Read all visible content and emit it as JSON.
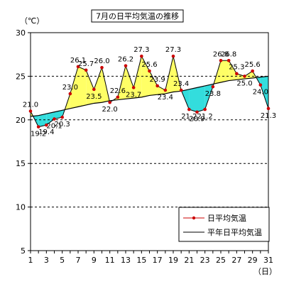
{
  "chart_data": {
    "type": "line",
    "title": "7月の日平均気温の推移",
    "y_unit": "（℃）",
    "x_unit": "（日）",
    "ylim": [
      5,
      30
    ],
    "yticks": [
      5,
      10,
      15,
      20,
      25,
      30
    ],
    "xticks": [
      1,
      3,
      5,
      7,
      9,
      11,
      13,
      15,
      17,
      19,
      21,
      23,
      25,
      27,
      29,
      31
    ],
    "dashed_gridlines_at": [
      10,
      15,
      20,
      25
    ],
    "legend_position": "bottom-right",
    "x": [
      1,
      2,
      3,
      4,
      5,
      6,
      7,
      8,
      9,
      10,
      11,
      12,
      13,
      14,
      15,
      16,
      17,
      18,
      19,
      20,
      21,
      22,
      23,
      24,
      25,
      26,
      27,
      28,
      29,
      30,
      31
    ],
    "series": [
      {
        "name": "日平均気温",
        "values": [
          21.0,
          19.2,
          19.4,
          20.1,
          20.3,
          23.0,
          26.1,
          25.7,
          23.5,
          26.0,
          22.0,
          22.6,
          26.2,
          23.7,
          27.3,
          25.6,
          23.9,
          23.4,
          27.3,
          23.4,
          21.2,
          20.9,
          21.2,
          23.8,
          26.8,
          26.8,
          25.3,
          25.0,
          25.6,
          24.0,
          21.3
        ],
        "labels": [
          "21.0",
          "19.2",
          "19.4",
          "20.1",
          "20.3",
          "23.0",
          "26.1",
          "25.7",
          "23.5",
          "26.0",
          "22.0",
          "22.6",
          "26.2",
          "23.7",
          "27.3",
          "25.6",
          "23.9",
          "23.4",
          "27.3",
          "23.4",
          "21.2",
          "20.9",
          "21.2",
          "23.8",
          "26.8",
          "26.8",
          "25.3",
          "25.0",
          "25.6",
          "24.0",
          "21.3"
        ],
        "color": "#cc0000"
      },
      {
        "name": "平年日平均気温",
        "values": [
          20.4,
          20.5,
          20.7,
          20.9,
          21.1,
          21.3,
          21.5,
          21.7,
          21.9,
          22.0,
          22.2,
          22.3,
          22.4,
          22.5,
          22.6,
          22.8,
          22.9,
          23.0,
          23.2,
          23.3,
          23.5,
          23.7,
          23.9,
          24.1,
          24.3,
          24.5,
          24.6,
          24.7,
          24.8,
          24.9,
          25.0
        ],
        "color": "#000000"
      }
    ],
    "fill_above_color": "#ffff66",
    "fill_below_color": "#33dddd"
  }
}
